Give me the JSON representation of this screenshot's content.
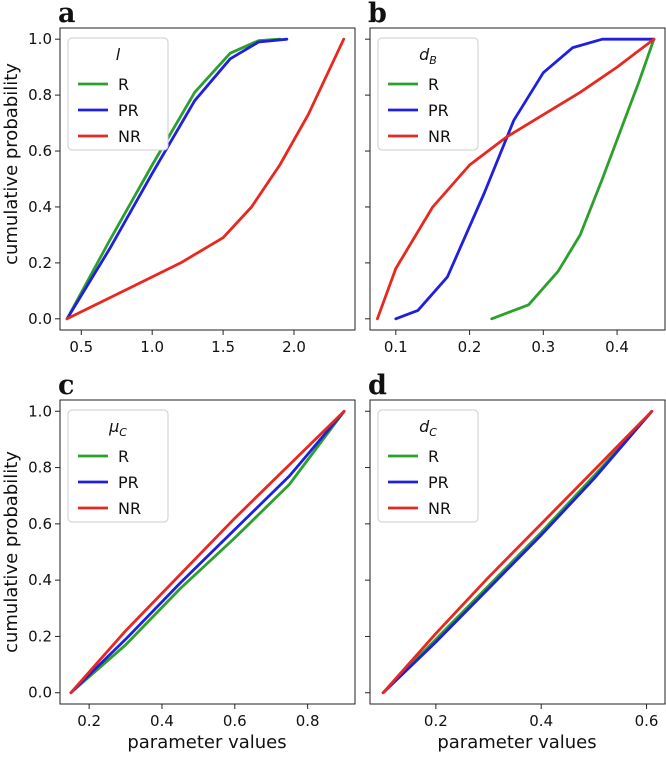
{
  "colors": {
    "R": "#2ca02c",
    "PR": "#1f1fe0",
    "NR": "#e8281f"
  },
  "shared": {
    "ylabel": "cumulative probability",
    "xlabel": "parameter values"
  },
  "chart_data": [
    {
      "type": "line",
      "panel": "a",
      "legend_title": "l",
      "legend_sub": "",
      "xlim": [
        0.35,
        2.43
      ],
      "ylim": [
        -0.04,
        1.04
      ],
      "xticks": [
        0.5,
        1.0,
        1.5,
        2.0
      ],
      "xtick_labels": [
        "0.5",
        "1.0",
        "1.5",
        "2.0"
      ],
      "yticks": [
        0.0,
        0.2,
        0.4,
        0.6,
        0.8,
        1.0
      ],
      "ytick_labels": [
        "0.0",
        "0.2",
        "0.4",
        "0.6",
        "0.8",
        "1.0"
      ],
      "series": [
        {
          "name": "R",
          "x": [
            0.4,
            0.7,
            1.0,
            1.3,
            1.55,
            1.75,
            1.9
          ],
          "y": [
            0.0,
            0.28,
            0.55,
            0.81,
            0.95,
            0.995,
            1.0
          ]
        },
        {
          "name": "PR",
          "x": [
            0.4,
            0.7,
            1.0,
            1.3,
            1.55,
            1.75,
            1.95
          ],
          "y": [
            0.0,
            0.25,
            0.52,
            0.78,
            0.93,
            0.99,
            1.0
          ]
        },
        {
          "name": "NR",
          "x": [
            0.4,
            0.8,
            1.2,
            1.5,
            1.7,
            1.9,
            2.1,
            2.35
          ],
          "y": [
            0.0,
            0.1,
            0.2,
            0.29,
            0.4,
            0.55,
            0.73,
            1.0
          ]
        }
      ]
    },
    {
      "type": "line",
      "panel": "b",
      "legend_title": "d",
      "legend_sub": "B",
      "xlim": [
        0.065,
        0.465
      ],
      "ylim": [
        -0.04,
        1.04
      ],
      "xticks": [
        0.1,
        0.2,
        0.3,
        0.4
      ],
      "xtick_labels": [
        "0.1",
        "0.2",
        "0.3",
        "0.4"
      ],
      "yticks": [
        0.0,
        0.2,
        0.4,
        0.6,
        0.8,
        1.0
      ],
      "ytick_labels": [
        "",
        "",
        "",
        "",
        "",
        ""
      ],
      "series": [
        {
          "name": "R",
          "x": [
            0.23,
            0.28,
            0.32,
            0.35,
            0.38,
            0.41,
            0.43,
            0.45
          ],
          "y": [
            0.0,
            0.05,
            0.17,
            0.3,
            0.5,
            0.71,
            0.85,
            1.0
          ]
        },
        {
          "name": "PR",
          "x": [
            0.1,
            0.13,
            0.17,
            0.22,
            0.26,
            0.3,
            0.34,
            0.38,
            0.45
          ],
          "y": [
            0.0,
            0.03,
            0.15,
            0.45,
            0.71,
            0.88,
            0.97,
            1.0,
            1.0
          ]
        },
        {
          "name": "NR",
          "x": [
            0.075,
            0.1,
            0.15,
            0.2,
            0.25,
            0.3,
            0.35,
            0.4,
            0.45
          ],
          "y": [
            0.0,
            0.18,
            0.4,
            0.55,
            0.65,
            0.73,
            0.81,
            0.9,
            1.0
          ]
        }
      ]
    },
    {
      "type": "line",
      "panel": "c",
      "legend_title": "μ",
      "legend_sub": "C",
      "xlim": [
        0.12,
        0.93
      ],
      "ylim": [
        -0.04,
        1.04
      ],
      "xticks": [
        0.2,
        0.4,
        0.6,
        0.8
      ],
      "xtick_labels": [
        "0.2",
        "0.4",
        "0.6",
        "0.8"
      ],
      "yticks": [
        0.0,
        0.2,
        0.4,
        0.6,
        0.8,
        1.0
      ],
      "ytick_labels": [
        "0.0",
        "0.2",
        "0.4",
        "0.6",
        "0.8",
        "1.0"
      ],
      "series": [
        {
          "name": "R",
          "x": [
            0.15,
            0.3,
            0.45,
            0.6,
            0.75,
            0.9
          ],
          "y": [
            0.0,
            0.17,
            0.37,
            0.55,
            0.74,
            1.0
          ]
        },
        {
          "name": "PR",
          "x": [
            0.15,
            0.3,
            0.45,
            0.6,
            0.75,
            0.9
          ],
          "y": [
            0.0,
            0.19,
            0.39,
            0.58,
            0.77,
            1.0
          ]
        },
        {
          "name": "NR",
          "x": [
            0.15,
            0.3,
            0.45,
            0.6,
            0.75,
            0.9
          ],
          "y": [
            0.0,
            0.22,
            0.42,
            0.62,
            0.81,
            1.0
          ]
        }
      ]
    },
    {
      "type": "line",
      "panel": "d",
      "legend_title": "d",
      "legend_sub": "C",
      "xlim": [
        0.075,
        0.635
      ],
      "ylim": [
        -0.04,
        1.04
      ],
      "xticks": [
        0.2,
        0.4,
        0.6
      ],
      "xtick_labels": [
        "0.2",
        "0.4",
        "0.6"
      ],
      "yticks": [
        0.0,
        0.2,
        0.4,
        0.6,
        0.8,
        1.0
      ],
      "ytick_labels": [
        "",
        "",
        "",
        "",
        "",
        ""
      ],
      "series": [
        {
          "name": "R",
          "x": [
            0.1,
            0.2,
            0.3,
            0.4,
            0.5,
            0.61
          ],
          "y": [
            0.0,
            0.19,
            0.38,
            0.57,
            0.77,
            1.0
          ]
        },
        {
          "name": "PR",
          "x": [
            0.1,
            0.2,
            0.3,
            0.4,
            0.5,
            0.61
          ],
          "y": [
            0.0,
            0.18,
            0.37,
            0.56,
            0.76,
            1.0
          ]
        },
        {
          "name": "NR",
          "x": [
            0.1,
            0.2,
            0.3,
            0.4,
            0.5,
            0.61
          ],
          "y": [
            0.0,
            0.21,
            0.41,
            0.6,
            0.79,
            1.0
          ]
        }
      ]
    }
  ]
}
